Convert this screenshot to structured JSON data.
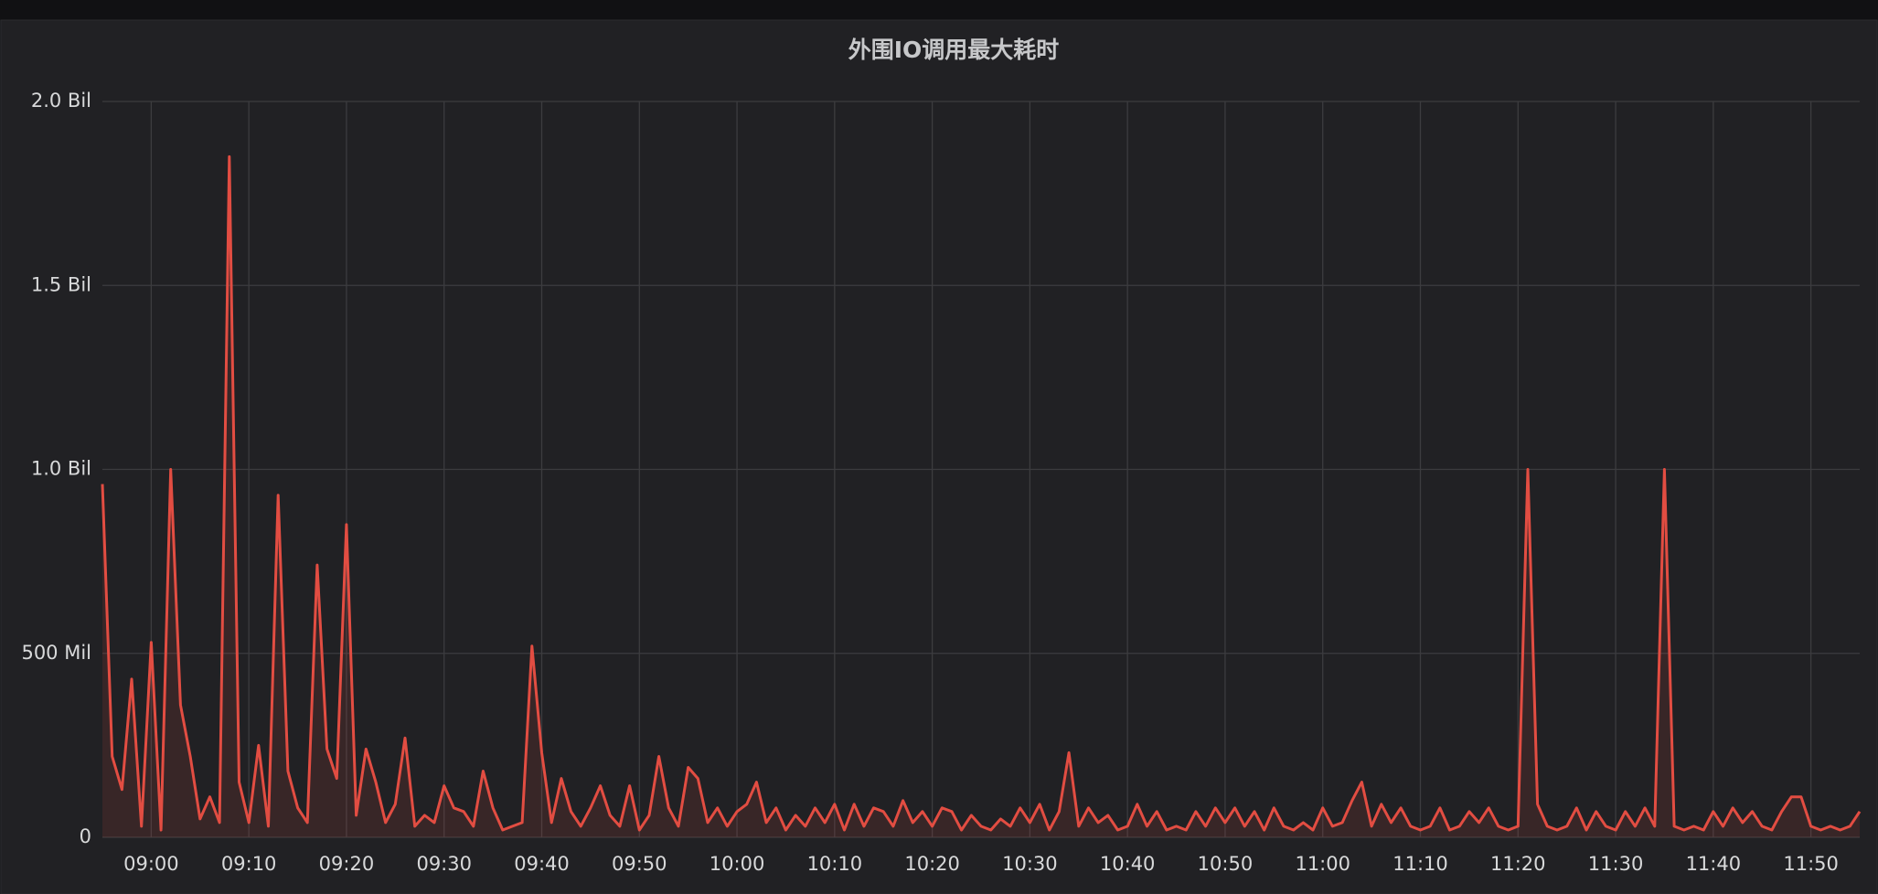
{
  "chart_data": {
    "type": "line",
    "title": "外围IO调用最大耗时",
    "x": [
      "08:55",
      "08:56",
      "08:57",
      "08:58",
      "08:59",
      "09:00",
      "09:01",
      "09:02",
      "09:03",
      "09:04",
      "09:05",
      "09:06",
      "09:07",
      "09:08",
      "09:09",
      "09:10",
      "09:11",
      "09:12",
      "09:13",
      "09:14",
      "09:15",
      "09:16",
      "09:17",
      "09:18",
      "09:19",
      "09:20",
      "09:21",
      "09:22",
      "09:23",
      "09:24",
      "09:25",
      "09:26",
      "09:27",
      "09:28",
      "09:29",
      "09:30",
      "09:31",
      "09:32",
      "09:33",
      "09:34",
      "09:35",
      "09:36",
      "09:37",
      "09:38",
      "09:39",
      "09:40",
      "09:41",
      "09:42",
      "09:43",
      "09:44",
      "09:45",
      "09:46",
      "09:47",
      "09:48",
      "09:49",
      "09:50",
      "09:51",
      "09:52",
      "09:53",
      "09:54",
      "09:55",
      "09:56",
      "09:57",
      "09:58",
      "09:59",
      "10:00",
      "10:01",
      "10:02",
      "10:03",
      "10:04",
      "10:05",
      "10:06",
      "10:07",
      "10:08",
      "10:09",
      "10:10",
      "10:11",
      "10:12",
      "10:13",
      "10:14",
      "10:15",
      "10:16",
      "10:17",
      "10:18",
      "10:19",
      "10:20",
      "10:21",
      "10:22",
      "10:23",
      "10:24",
      "10:25",
      "10:26",
      "10:27",
      "10:28",
      "10:29",
      "10:30",
      "10:31",
      "10:32",
      "10:33",
      "10:34",
      "10:35",
      "10:36",
      "10:37",
      "10:38",
      "10:39",
      "10:40",
      "10:41",
      "10:42",
      "10:43",
      "10:44",
      "10:45",
      "10:46",
      "10:47",
      "10:48",
      "10:49",
      "10:50",
      "10:51",
      "10:52",
      "10:53",
      "10:54",
      "10:55",
      "10:56",
      "10:57",
      "10:58",
      "10:59",
      "11:00",
      "11:01",
      "11:02",
      "11:03",
      "11:04",
      "11:05",
      "11:06",
      "11:07",
      "11:08",
      "11:09",
      "11:10",
      "11:11",
      "11:12",
      "11:13",
      "11:14",
      "11:15",
      "11:16",
      "11:17",
      "11:18",
      "11:19",
      "11:20",
      "11:21",
      "11:22",
      "11:23",
      "11:24",
      "11:25",
      "11:26",
      "11:27",
      "11:28",
      "11:29",
      "11:30",
      "11:31",
      "11:32",
      "11:33",
      "11:34",
      "11:35",
      "11:36",
      "11:37",
      "11:38",
      "11:39",
      "11:40",
      "11:41",
      "11:42",
      "11:43",
      "11:44",
      "11:45",
      "11:46",
      "11:47",
      "11:48",
      "11:49",
      "11:50",
      "11:51",
      "11:52",
      "11:53",
      "11:54",
      "11:55"
    ],
    "series": [
      {
        "color": "#e24d42",
        "values": [
          960000000,
          220000000,
          130000000,
          430000000,
          30000000,
          530000000,
          20000000,
          1000000000,
          360000000,
          220000000,
          50000000,
          110000000,
          40000000,
          1850000000,
          150000000,
          40000000,
          250000000,
          30000000,
          930000000,
          180000000,
          80000000,
          40000000,
          740000000,
          240000000,
          160000000,
          850000000,
          60000000,
          240000000,
          150000000,
          40000000,
          90000000,
          270000000,
          30000000,
          60000000,
          40000000,
          140000000,
          80000000,
          70000000,
          30000000,
          180000000,
          80000000,
          20000000,
          30000000,
          40000000,
          520000000,
          230000000,
          40000000,
          160000000,
          70000000,
          30000000,
          80000000,
          140000000,
          60000000,
          30000000,
          140000000,
          20000000,
          60000000,
          220000000,
          80000000,
          30000000,
          190000000,
          160000000,
          40000000,
          80000000,
          30000000,
          70000000,
          90000000,
          150000000,
          40000000,
          80000000,
          20000000,
          60000000,
          30000000,
          80000000,
          40000000,
          90000000,
          20000000,
          90000000,
          30000000,
          80000000,
          70000000,
          30000000,
          100000000,
          40000000,
          70000000,
          30000000,
          80000000,
          70000000,
          20000000,
          60000000,
          30000000,
          20000000,
          50000000,
          30000000,
          80000000,
          40000000,
          90000000,
          20000000,
          70000000,
          230000000,
          30000000,
          80000000,
          40000000,
          60000000,
          20000000,
          30000000,
          90000000,
          30000000,
          70000000,
          20000000,
          30000000,
          20000000,
          70000000,
          30000000,
          80000000,
          40000000,
          80000000,
          30000000,
          70000000,
          20000000,
          80000000,
          30000000,
          20000000,
          40000000,
          20000000,
          80000000,
          30000000,
          40000000,
          100000000,
          150000000,
          30000000,
          90000000,
          40000000,
          80000000,
          30000000,
          20000000,
          30000000,
          80000000,
          20000000,
          30000000,
          70000000,
          40000000,
          80000000,
          30000000,
          20000000,
          30000000,
          1000000000,
          90000000,
          30000000,
          20000000,
          30000000,
          80000000,
          20000000,
          70000000,
          30000000,
          20000000,
          70000000,
          30000000,
          80000000,
          30000000,
          1000000000,
          30000000,
          20000000,
          30000000,
          20000000,
          70000000,
          30000000,
          80000000,
          40000000,
          70000000,
          30000000,
          20000000,
          70000000,
          110000000,
          110000000,
          30000000,
          20000000,
          30000000,
          20000000,
          30000000,
          70000000
        ]
      }
    ],
    "xlim": [
      "08:55",
      "11:55"
    ],
    "xticks": [
      "09:00",
      "09:10",
      "09:20",
      "09:30",
      "09:40",
      "09:50",
      "10:00",
      "10:10",
      "10:20",
      "10:30",
      "10:40",
      "10:50",
      "11:00",
      "11:10",
      "11:20",
      "11:30",
      "11:40",
      "11:50"
    ],
    "ylim": [
      0,
      2000000000
    ],
    "yticks": [
      0,
      {
        "value": 500000000,
        "label": "500 Mil"
      },
      {
        "value": 1000000000,
        "label": "1.0 Bil"
      },
      {
        "value": 1500000000,
        "label": "1.5 Bil"
      },
      {
        "value": 2000000000,
        "label": "2.0 Bil"
      }
    ],
    "grid": true
  }
}
